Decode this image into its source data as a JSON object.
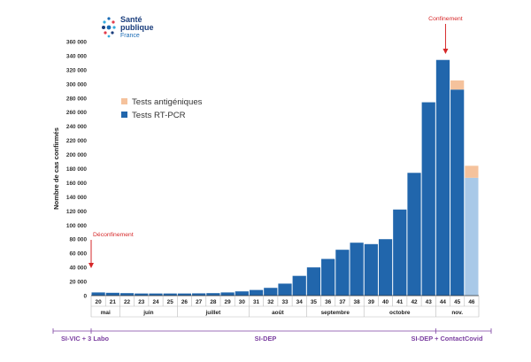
{
  "logo": {
    "line1": "Santé",
    "line2": "publique",
    "line3": "France"
  },
  "colors": {
    "rtpcr": "#2166ac",
    "rtpcr_light": "#a9c9e8",
    "antigen": "#f5c29c",
    "annotation": "#d62728",
    "system": "#7b3fa0",
    "axis": "#333333"
  },
  "chart_data": {
    "type": "bar",
    "stacked": true,
    "ylabel": "Nombre de cas confirmés",
    "ylim": [
      0,
      360000
    ],
    "yticks": [
      "0",
      "20 000",
      "40 000",
      "60 000",
      "80 000",
      "100 000",
      "120 000",
      "140 000",
      "160 000",
      "180 000",
      "200 000",
      "220 000",
      "240 000",
      "260 000",
      "280 000",
      "300 000",
      "320 000",
      "340 000",
      "360 000"
    ],
    "categories": [
      "20",
      "21",
      "22",
      "23",
      "24",
      "25",
      "26",
      "27",
      "28",
      "29",
      "30",
      "31",
      "32",
      "33",
      "34",
      "35",
      "36",
      "37",
      "38",
      "39",
      "40",
      "41",
      "42",
      "43",
      "44",
      "45",
      "46"
    ],
    "series": [
      {
        "name": "Tests RT-PCR",
        "values": [
          4500,
          4000,
          3500,
          3000,
          3000,
          3000,
          3000,
          3200,
          3500,
          4500,
          6000,
          8000,
          11000,
          17000,
          28000,
          40000,
          52000,
          65000,
          75000,
          73000,
          80000,
          122000,
          174000,
          274000,
          334000,
          292000,
          167000
        ],
        "partial_index": 26
      },
      {
        "name": "Tests antigéniques",
        "values": [
          0,
          0,
          0,
          0,
          0,
          0,
          0,
          0,
          0,
          0,
          0,
          0,
          0,
          0,
          0,
          0,
          0,
          0,
          0,
          0,
          0,
          0,
          0,
          0,
          0,
          13000,
          17000
        ]
      }
    ],
    "months": [
      {
        "label": "mai",
        "from": 0,
        "to": 1
      },
      {
        "label": "juin",
        "from": 2,
        "to": 5
      },
      {
        "label": "juillet",
        "from": 6,
        "to": 10
      },
      {
        "label": "août",
        "from": 11,
        "to": 14
      },
      {
        "label": "septembre",
        "from": 15,
        "to": 18
      },
      {
        "label": "octobre",
        "from": 19,
        "to": 23
      },
      {
        "label": "nov.",
        "from": 24,
        "to": 26
      }
    ],
    "legend": [
      {
        "label": "Tests antigéniques",
        "color": "#f5c29c"
      },
      {
        "label": "Tests RT-PCR",
        "color": "#2166ac"
      }
    ],
    "annotations": [
      {
        "text": "Confinement",
        "category": "44"
      },
      {
        "text": "Déconfinement",
        "category": "20"
      }
    ],
    "systems": [
      {
        "label": "SI-VIC + 3 Labo",
        "from": 0,
        "to": 0
      },
      {
        "label": "SI-DEP",
        "from": 0,
        "to": 24
      },
      {
        "label": "SI-DEP + ContactCovid",
        "from": 24,
        "to": 26
      }
    ]
  }
}
